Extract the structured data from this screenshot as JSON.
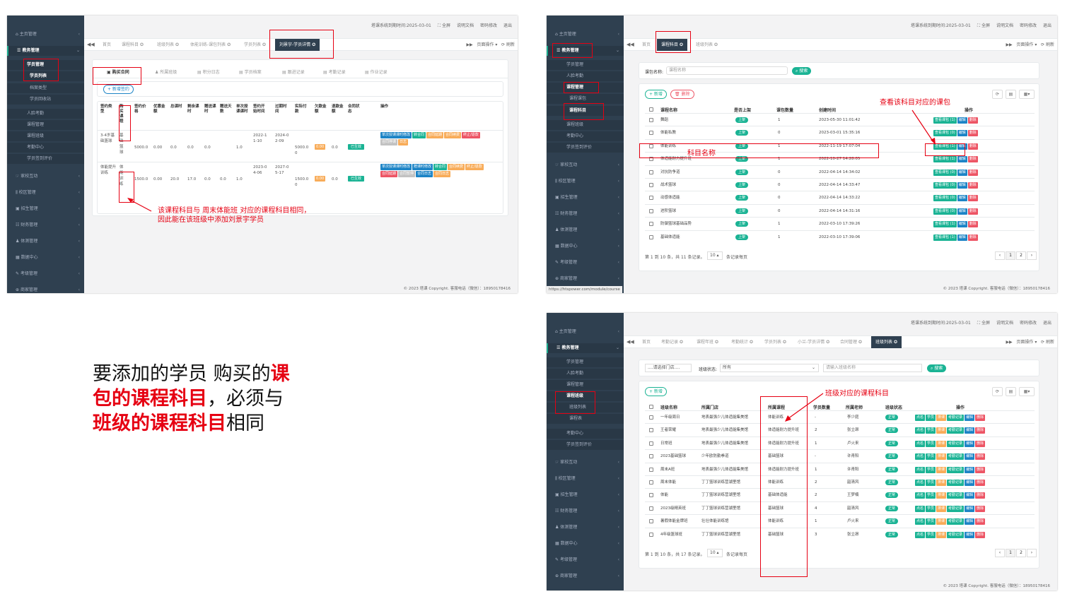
{
  "common": {
    "top_info": [
      "塔课系统到期时间:2025-03-01",
      "⛶ 全屏",
      "说明文档",
      "密码修改",
      "退出"
    ],
    "page_ops": "页面操作",
    "refresh": "刷新",
    "footer": "© 2023 塔课 Copyright. 客服电话（微信）：18950178416"
  },
  "s1": {
    "sidebar": [
      "主页管理",
      "教务管理",
      "学员管理",
      "学员列表",
      "档案类型",
      "学员回收站",
      "人脸考勤",
      "课程管理",
      "课程班级",
      "考勤中心",
      "学员签到评价",
      "家校互动",
      "校区管理",
      "招生管理",
      "财务管理",
      "体测管理",
      "数据中心",
      "考级管理",
      "商家管理"
    ],
    "tabs": [
      "首页",
      "课程科目",
      "班级列表",
      "体能训练-课包列表",
      "学员列表",
      "刘景宇-学员详情"
    ],
    "inner_tabs": [
      "购买合同",
      "所属班级",
      "积分日志",
      "学员档案",
      "跟进记录",
      "考勤记录",
      "作业记录"
    ],
    "new_contract": "+ 新增签约",
    "headers": [
      "签约类型",
      "购买课程",
      "签约价格",
      "优惠金额",
      "总课时",
      "剩余课时",
      "赠送课时",
      "赠送天数",
      "单次授课课时",
      "签约开始时间",
      "过期时间",
      "实际付款",
      "欠款金额",
      "退款金额",
      "合同状态",
      "操作"
    ],
    "rows": [
      [
        "3-4岁基础篮球",
        "基础篮球",
        "5000.0",
        "0.00",
        "0.0",
        "0.0",
        "0.0",
        "",
        "1.0",
        "2022-11-10",
        "2024-02-09",
        "5000.00",
        "0.00",
        "0.0",
        "已生效"
      ],
      [
        "体能提升训练",
        "体能训练",
        "1500.0",
        "0.00",
        "20.0",
        "17.0",
        "0.0",
        "0.0",
        "1.0",
        "2023-04-06",
        "2027-05-17",
        "1500.00",
        "0.00",
        "0.0",
        "已生效"
      ]
    ],
    "ops1": [
      "单次授课课时修改",
      "转合同",
      "合同延期",
      "合同续费",
      "终止/退款",
      "合同停课",
      "日志"
    ],
    "ops2": [
      "单次授课课时修改",
      "赠课时修改",
      "转合同",
      "合同续费",
      "终止/退款",
      "合同延期",
      "合同暂停",
      "合同日志",
      "合同日志"
    ],
    "annot": [
      "该课程科目与 周末体能班 对应的课程科目相同，",
      "因此能在该班级中添加刘景宇学员"
    ]
  },
  "s2": {
    "sidebar": [
      "主页管理",
      "教务管理",
      "学员管理",
      "人脸考勤",
      "课程管理",
      "课程课包",
      "课程科目",
      "课程班级",
      "考勤中心",
      "学员签到评价",
      "家校互动",
      "校区管理",
      "招生管理",
      "财务管理",
      "体测管理",
      "数据中心",
      "考级管理",
      "商家管理"
    ],
    "tabs": [
      "首页",
      "课程科目",
      "班级列表"
    ],
    "filter_label": "课包名称:",
    "filter_placeholder": "课程名称",
    "search": "搜索",
    "add": "+ 新增",
    "del": "删除",
    "headers": [
      "课程名称",
      "是否上架",
      "课包数量",
      "创建时间",
      "操作"
    ],
    "rows": [
      [
        "舞蹈",
        "上架",
        "1",
        "2023-05-30 11:01:42",
        "1"
      ],
      [
        "体能私教",
        "上架",
        "0",
        "2023-03-01 15:35:16",
        "0"
      ],
      [
        "体能训练",
        "上架",
        "1",
        "2022-11-19 17:07:04",
        "1"
      ],
      [
        "体适能耐力提升班",
        "上架",
        "1",
        "2022-10-27 14:28:05",
        "1"
      ],
      [
        "对抗防争道",
        "上架",
        "0",
        "2022-04-14 14:34:02",
        "0"
      ],
      [
        "战术篮球",
        "上架",
        "0",
        "2022-04-14 14:33:47",
        "0"
      ],
      [
        "动感体适能",
        "上架",
        "0",
        "2022-04-14 14:33:22",
        "0"
      ],
      [
        "进阶篮球",
        "上架",
        "0",
        "2022-04-14 14:31:16",
        "0"
      ],
      [
        "防御篮球基础品势",
        "上架",
        "1",
        "2022-03-10 17:39:26",
        "1"
      ],
      [
        "基础体适能",
        "上架",
        "1",
        "2022-03-10 17:39:06",
        "1"
      ]
    ],
    "op_labels": [
      "查看课包",
      "编辑",
      "删除"
    ],
    "pager": "第 1 到 10 条，共 11 条记录。",
    "page_size": "10",
    "per_page": "条记录每页",
    "pages": [
      "‹",
      "1",
      "2",
      "›"
    ],
    "annot_name": "科目名称",
    "annot_view": "查看该科目对应的课包",
    "url": "https://htspower.com/module/course"
  },
  "s3": {
    "sidebar": [
      "主页管理",
      "教务管理",
      "学员管理",
      "人脸考勤",
      "课程管理",
      "课程班级",
      "班级列表",
      "课程表",
      "考勤中心",
      "学员签到评价",
      "家校互动",
      "校区管理",
      "招生管理",
      "财务管理",
      "体测管理",
      "数据中心",
      "考级管理",
      "商家管理"
    ],
    "tabs": [
      "首页",
      "考勤记录",
      "课程年班",
      "考勤统计",
      "学员列表",
      "小兰-学员详情",
      "合同管理",
      "班级列表"
    ],
    "store_select": "....请选择门店....",
    "status_label": "班级状态:",
    "status_value": "所有",
    "name_placeholder": "请输入班级名称",
    "search": "搜索",
    "add": "+ 新增",
    "headers": [
      "班级名称",
      "所属门店",
      "所属课程",
      "学员数量",
      "所属老师",
      "班级状态",
      "操作"
    ],
    "rows": [
      [
        "一年级周日",
        "地表最强少儿体适能集美馆",
        "体能训练",
        "-",
        "李少庭",
        "正常"
      ],
      [
        "王者荣耀",
        "地表最强少儿体适能集美馆",
        "体适能耐力提升班",
        "2",
        "张立昂",
        "正常"
      ],
      [
        "日常班",
        "地表最强少儿体适能集美馆",
        "体适能耐力提升班",
        "1",
        "卢火来",
        "正常"
      ],
      [
        "2023基础篮球",
        "少年欧防勤拳道",
        "基础篮球",
        "-",
        "许青阳",
        "正常"
      ],
      [
        "周末A班",
        "地表最强少儿体适能集美馆",
        "体适能耐力提升班",
        "1",
        "许青阳",
        "正常"
      ],
      [
        "周末体能",
        "丁丁篮球训练营湖里馆",
        "体能训练",
        "2",
        "韶清风",
        "正常"
      ],
      [
        "体能",
        "丁丁篮球训练营湖里馆",
        "基础体适能",
        "2",
        "王梦楠",
        "正常"
      ],
      [
        "2023级精英班",
        "丁丁篮球训练营湖里馆",
        "基础篮球",
        "4",
        "韶清风",
        "正常"
      ],
      [
        "暑假体能金牌班",
        "壮壮体能训练馆",
        "体能训练",
        "1",
        "卢火来",
        "正常"
      ],
      [
        "4年级篮球班",
        "丁丁篮球训练营湖里馆",
        "基础篮球",
        "3",
        "张立昂",
        "正常"
      ]
    ],
    "op_labels": [
      "点名",
      "学员",
      "排课",
      "考勤记录",
      "编辑",
      "删除"
    ],
    "pager": "第 1 到 10 条，共 17 条记录。",
    "page_size": "10",
    "per_page": "条记录每页",
    "pages": [
      "‹",
      "1",
      "2",
      "›"
    ],
    "annot": "班级对应的课程科目"
  },
  "note": {
    "l1a": "要添加的学员 购买的",
    "l1b": "课",
    "l2a": "包的课程科目",
    "l2b": "，必须与",
    "l3a": "班级的课程科目",
    "l3b": "相同"
  },
  "colors": {
    "sidebar": "#2f4050",
    "green": "#1ab394",
    "blue": "#1c84c6",
    "red": "#ed5565",
    "orange": "#f8ac59",
    "annot": "#e60012"
  }
}
